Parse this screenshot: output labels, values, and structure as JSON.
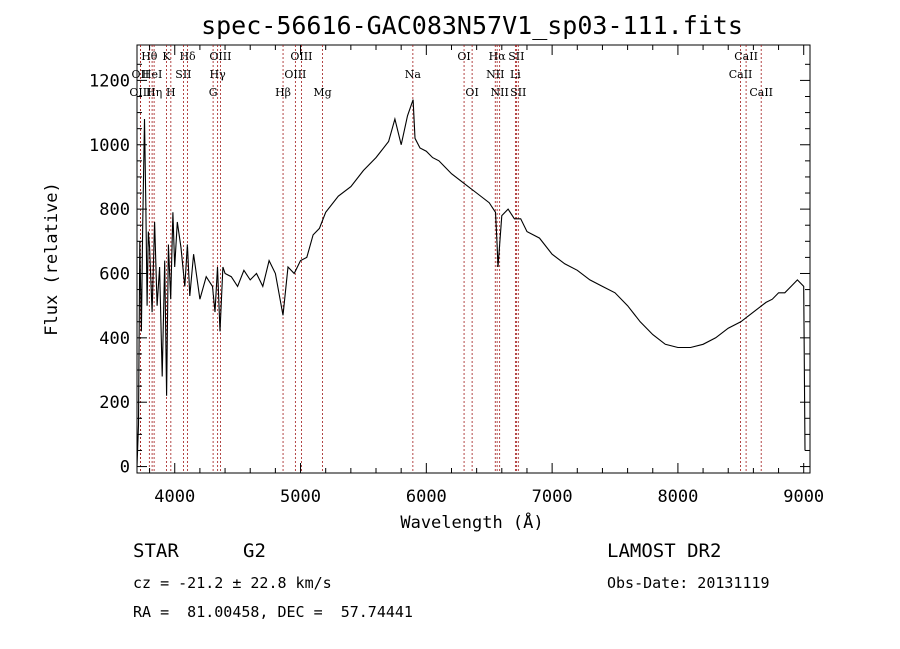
{
  "chart_data": {
    "type": "line",
    "title": "spec-56616-GAC083N57V1_sp03-111.fits",
    "xlabel": "Wavelength (Å)",
    "ylabel": "Flux (relative)",
    "xlim": [
      3700,
      9050
    ],
    "ylim": [
      -20,
      1310
    ],
    "xticks": [
      4000,
      5000,
      6000,
      7000,
      8000,
      9000
    ],
    "yticks": [
      0,
      200,
      400,
      600,
      800,
      1000,
      1200
    ],
    "grid": false,
    "series": [
      {
        "x": [
          3700,
          3712,
          3722,
          3735,
          3745,
          3760,
          3770,
          3780,
          3790,
          3800,
          3820,
          3840,
          3860,
          3880,
          3900,
          3920,
          3935,
          3950,
          3968,
          3985,
          4000,
          4020,
          4050,
          4080,
          4101,
          4120,
          4150,
          4200,
          4250,
          4300,
          4320,
          4340,
          4360,
          4383,
          4400,
          4450,
          4500,
          4550,
          4600,
          4650,
          4700,
          4750,
          4800,
          4861,
          4900,
          4950,
          5000,
          5050,
          5100,
          5150,
          5200,
          5300,
          5400,
          5500,
          5600,
          5700,
          5750,
          5800,
          5850,
          5895,
          5910,
          5950,
          6000,
          6050,
          6100,
          6150,
          6200,
          6300,
          6400,
          6500,
          6550,
          6563,
          6570,
          6600,
          6650,
          6700,
          6750,
          6800,
          6900,
          7000,
          7100,
          7200,
          7300,
          7400,
          7500,
          7600,
          7700,
          7800,
          7900,
          8000,
          8100,
          8200,
          8300,
          8400,
          8500,
          8600,
          8700,
          8750,
          8800,
          8850,
          8900,
          8950,
          9000,
          9010
        ],
        "y": [
          0,
          130,
          700,
          420,
          750,
          1080,
          820,
          500,
          730,
          680,
          480,
          760,
          500,
          620,
          280,
          640,
          220,
          690,
          520,
          790,
          620,
          760,
          680,
          560,
          690,
          530,
          660,
          520,
          590,
          560,
          480,
          620,
          420,
          620,
          600,
          590,
          560,
          610,
          580,
          600,
          560,
          640,
          600,
          470,
          620,
          600,
          640,
          650,
          720,
          740,
          790,
          840,
          870,
          920,
          960,
          1010,
          1080,
          1000,
          1090,
          1140,
          1020,
          990,
          980,
          960,
          950,
          930,
          910,
          880,
          850,
          820,
          790,
          690,
          620,
          780,
          800,
          770,
          770,
          730,
          710,
          660,
          630,
          610,
          580,
          560,
          540,
          500,
          450,
          410,
          380,
          370,
          370,
          380,
          400,
          430,
          450,
          480,
          510,
          520,
          540,
          540,
          560,
          580,
          560,
          50
        ]
      }
    ],
    "spectral_lines": [
      {
        "label": "Hθ",
        "x": 3798,
        "row": 0
      },
      {
        "label": "OII",
        "x": 3727,
        "row": 1
      },
      {
        "label": "HeI",
        "x": 3820,
        "row": 1
      },
      {
        "label": "OIII",
        "x": 3727,
        "row": 2
      },
      {
        "label": "Hη",
        "x": 3836,
        "row": 2
      },
      {
        "label": "K",
        "x": 3934,
        "row": 0
      },
      {
        "label": "H",
        "x": 3969,
        "row": 2
      },
      {
        "label": "SII",
        "x": 4069,
        "row": 1
      },
      {
        "label": "Hδ",
        "x": 4102,
        "row": 0
      },
      {
        "label": "OIII",
        "x": 4363,
        "row": 0
      },
      {
        "label": "Hγ",
        "x": 4341,
        "row": 1
      },
      {
        "label": "G",
        "x": 4305,
        "row": 2
      },
      {
        "label": "Hβ",
        "x": 4861,
        "row": 2
      },
      {
        "label": "OIII",
        "x": 5007,
        "row": 0
      },
      {
        "label": "OIII",
        "x": 4959,
        "row": 1
      },
      {
        "label": "Mg",
        "x": 5175,
        "row": 2
      },
      {
        "label": "Na",
        "x": 5893,
        "row": 1
      },
      {
        "label": "OI",
        "x": 6300,
        "row": 0
      },
      {
        "label": "OI",
        "x": 6364,
        "row": 2
      },
      {
        "label": "Hα",
        "x": 6563,
        "row": 0
      },
      {
        "label": "NII",
        "x": 6548,
        "row": 1
      },
      {
        "label": "NII",
        "x": 6583,
        "row": 2
      },
      {
        "label": "SII",
        "x": 6716,
        "row": 0
      },
      {
        "label": "Li",
        "x": 6708,
        "row": 1
      },
      {
        "label": "SII",
        "x": 6731,
        "row": 2
      },
      {
        "label": "CaII",
        "x": 8542,
        "row": 0
      },
      {
        "label": "CaII",
        "x": 8498,
        "row": 1
      },
      {
        "label": "CaII",
        "x": 8662,
        "row": 2
      }
    ]
  },
  "info": {
    "object_class": "STAR",
    "subclass": "G2",
    "survey": "LAMOST DR2",
    "redshift_line": "cz = -21.2 ± 22.8 km/s",
    "obs_date_line": "Obs-Date: 20131119",
    "coords_line": "RA =  81.00458, DEC =  57.74441"
  }
}
